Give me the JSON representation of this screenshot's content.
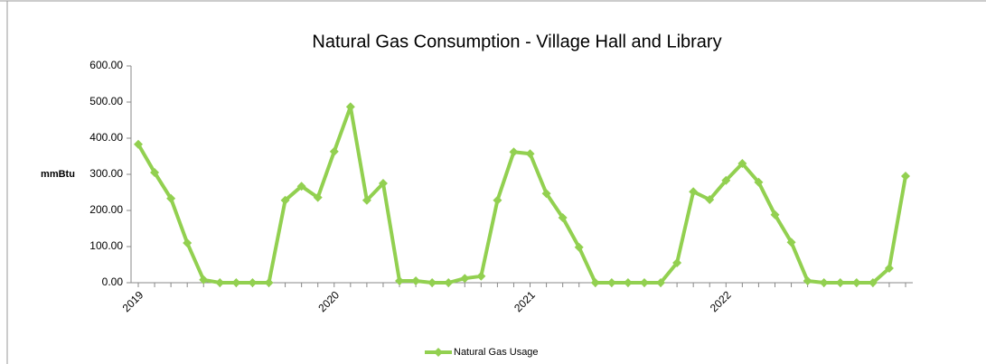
{
  "chart_data": {
    "type": "line",
    "title": "Natural Gas Consumption - Village Hall and Library",
    "y_label": "mmBtu",
    "categories": [
      "2019",
      null,
      null,
      null,
      null,
      null,
      null,
      null,
      null,
      null,
      null,
      null,
      "2020",
      null,
      null,
      null,
      null,
      null,
      null,
      null,
      null,
      null,
      null,
      null,
      "2021",
      null,
      null,
      null,
      null,
      null,
      null,
      null,
      null,
      null,
      null,
      null,
      "2022",
      null,
      null,
      null,
      null,
      null,
      null,
      null,
      null,
      null,
      null,
      null
    ],
    "series": [
      {
        "name": "Natural Gas Usage",
        "color": "#92d050",
        "values": [
          383,
          305,
          233,
          110,
          8,
          0,
          0,
          0,
          0,
          228,
          267,
          236,
          363,
          487,
          228,
          275,
          5,
          5,
          0,
          0,
          12,
          18,
          228,
          362,
          357,
          247,
          180,
          98,
          0,
          0,
          0,
          0,
          0,
          55,
          252,
          230,
          283,
          330,
          278,
          188,
          112,
          5,
          0,
          0,
          0,
          0,
          40,
          295
        ]
      }
    ],
    "ylim": [
      0,
      600
    ],
    "yticks": [
      {
        "value": 0,
        "label": "0.00"
      },
      {
        "value": 100,
        "label": "100.00"
      },
      {
        "value": 200,
        "label": "200.00"
      },
      {
        "value": 300,
        "label": "300.00"
      },
      {
        "value": 400,
        "label": "400.00"
      },
      {
        "value": 500,
        "label": "500.00"
      },
      {
        "value": 600,
        "label": "600.00"
      }
    ],
    "grid": false,
    "legend": "bottom"
  }
}
